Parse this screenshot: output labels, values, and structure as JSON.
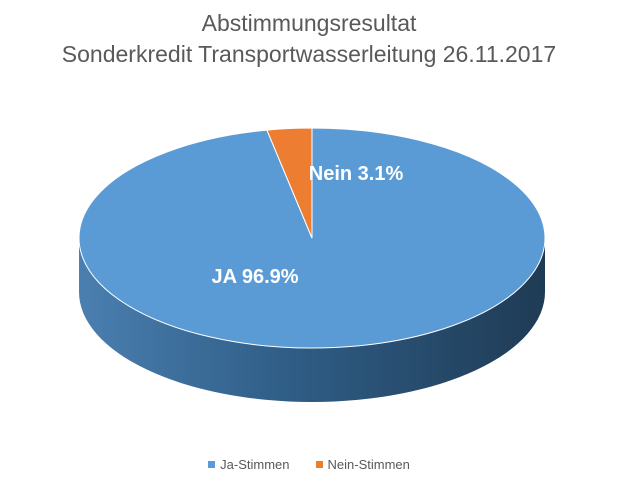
{
  "chart_data": {
    "type": "pie",
    "style": "3d",
    "title_lines": [
      "Abstimmungsresultat",
      "Sonderkredit Transportwasserleitung 26.11.2017"
    ],
    "slices": [
      {
        "name": "Ja-Stimmen",
        "value": 96.9,
        "label": "JA 96.9%",
        "color": "#5B9BD5"
      },
      {
        "name": "Nein-Stimmen",
        "value": 3.1,
        "label": "Nein 3.1%",
        "color": "#ED7D31"
      }
    ],
    "legend_position": "bottom"
  },
  "colors": {
    "ja": "#5B9BD5",
    "nein": "#ED7D31",
    "text": "#595959",
    "data_label": "#ffffff"
  }
}
